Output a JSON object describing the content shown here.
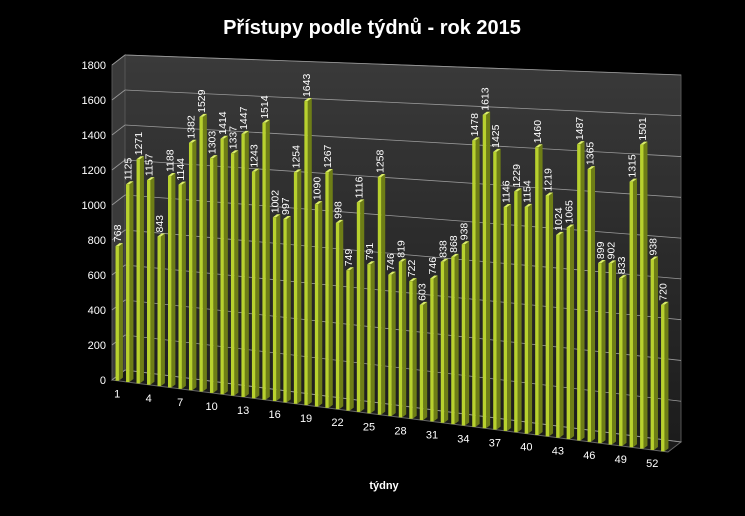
{
  "chart_data": {
    "type": "bar",
    "title": "Přístupy podle týdnů - rok 2015",
    "xlabel": "týdny",
    "ylabel": "",
    "ylim": [
      0,
      1800
    ],
    "yticks": [
      0,
      200,
      400,
      600,
      800,
      1000,
      1200,
      1400,
      1600,
      1800
    ],
    "xtick_labels": [
      "1",
      "4",
      "7",
      "10",
      "13",
      "16",
      "19",
      "22",
      "25",
      "28",
      "31",
      "34",
      "37",
      "40",
      "43",
      "46",
      "49",
      "52"
    ],
    "grid": true,
    "legend": "none",
    "categories": [
      "1",
      "2",
      "3",
      "4",
      "5",
      "6",
      "7",
      "8",
      "9",
      "10",
      "11",
      "12",
      "13",
      "14",
      "15",
      "16",
      "17",
      "18",
      "19",
      "20",
      "21",
      "22",
      "23",
      "24",
      "25",
      "26",
      "27",
      "28",
      "29",
      "30",
      "31",
      "32",
      "33",
      "34",
      "35",
      "36",
      "37",
      "38",
      "39",
      "40",
      "41",
      "42",
      "43",
      "44",
      "45",
      "46",
      "47",
      "48",
      "49",
      "50",
      "51",
      "52",
      "53"
    ],
    "values": [
      768,
      1125,
      1271,
      1157,
      843,
      1188,
      1144,
      1382,
      1529,
      1303,
      1414,
      1337,
      1447,
      1243,
      1514,
      1002,
      997,
      1254,
      1643,
      1090,
      1267,
      998,
      749,
      1116,
      791,
      1258,
      746,
      819,
      722,
      603,
      746,
      838,
      868,
      938,
      1478,
      1613,
      1425,
      1146,
      1229,
      1154,
      1460,
      1219,
      1024,
      1065,
      1487,
      1365,
      899,
      902,
      833,
      1315,
      1501,
      938,
      720
    ],
    "colors": {
      "bar": "#b8d12e",
      "bar_side": "#6e7e16",
      "bar_top": "#dcef6a",
      "wall": "#2b2b2b",
      "grid": "#9a9a9a"
    }
  }
}
